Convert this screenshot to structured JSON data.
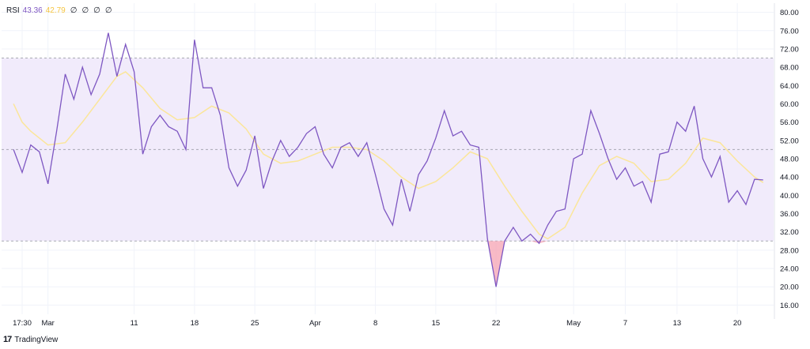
{
  "legend": {
    "name": "RSI",
    "rsi_value": "43.36",
    "ma_value": "42.79",
    "nan_values": [
      "∅",
      "∅",
      "∅",
      "∅"
    ]
  },
  "brand": {
    "label": "TradingView"
  },
  "colors": {
    "rsi_line": "#7e57c2",
    "ma_line": "#fbe69a",
    "band_fill": "#f1ebfb",
    "oversold_fill": "#f5a3b3",
    "band_line": "#9598a1",
    "grid": "#f0f3fa",
    "axis_text": "#131722"
  },
  "chart_data": {
    "type": "line",
    "y_axis": {
      "range": [
        14,
        82
      ],
      "ticks": [
        16,
        20,
        24,
        28,
        32,
        36,
        40,
        44,
        48,
        52,
        56,
        60,
        64,
        68,
        72,
        76,
        80
      ],
      "tick_labels": [
        "16.00",
        "20.00",
        "24.00",
        "28.00",
        "32.00",
        "36.00",
        "40.00",
        "44.00",
        "48.00",
        "52.00",
        "56.00",
        "60.00",
        "64.00",
        "68.00",
        "72.00",
        "76.00",
        "80.00"
      ]
    },
    "x_axis": {
      "range": [
        "Feb 27",
        "May 21"
      ],
      "ticks": [
        {
          "date": "Feb 27",
          "label": "17:30"
        },
        {
          "date": "Mar 1",
          "label": "Mar"
        },
        {
          "date": "Mar 11",
          "label": "11"
        },
        {
          "date": "Mar 18",
          "label": "18"
        },
        {
          "date": "Mar 25",
          "label": "25"
        },
        {
          "date": "Apr 1",
          "label": "Apr"
        },
        {
          "date": "Apr 8",
          "label": "8"
        },
        {
          "date": "Apr 15",
          "label": "15"
        },
        {
          "date": "Apr 22",
          "label": "22"
        },
        {
          "date": "May 1",
          "label": "May"
        },
        {
          "date": "May 7",
          "label": "7"
        },
        {
          "date": "May 13",
          "label": "13"
        },
        {
          "date": "May 20",
          "label": "20"
        }
      ]
    },
    "bands": {
      "upper": 70,
      "middle": 50,
      "lower": 30
    },
    "grid": true,
    "series": [
      {
        "name": "RSI",
        "points": [
          [
            "Feb 26",
            50.0
          ],
          [
            "Feb 27",
            45.0
          ],
          [
            "Feb 28",
            51.0
          ],
          [
            "Feb 29",
            49.5
          ],
          [
            "Mar 1",
            42.5
          ],
          [
            "Mar 2",
            54.0
          ],
          [
            "Mar 3",
            66.5
          ],
          [
            "Mar 4",
            61.0
          ],
          [
            "Mar 5",
            68.0
          ],
          [
            "Mar 6",
            62.0
          ],
          [
            "Mar 7",
            66.5
          ],
          [
            "Mar 8",
            75.5
          ],
          [
            "Mar 9",
            66.0
          ],
          [
            "Mar 10",
            73.0
          ],
          [
            "Mar 11",
            67.0
          ],
          [
            "Mar 12",
            49.0
          ],
          [
            "Mar 13",
            55.0
          ],
          [
            "Mar 14",
            57.5
          ],
          [
            "Mar 15",
            55.0
          ],
          [
            "Mar 16",
            54.0
          ],
          [
            "Mar 17",
            50.0
          ],
          [
            "Mar 18",
            74.0
          ],
          [
            "Mar 19",
            63.5
          ],
          [
            "Mar 20",
            63.5
          ],
          [
            "Mar 21",
            57.5
          ],
          [
            "Mar 22",
            46.0
          ],
          [
            "Mar 23",
            42.0
          ],
          [
            "Mar 24",
            45.5
          ],
          [
            "Mar 25",
            53.0
          ],
          [
            "Mar 26",
            41.5
          ],
          [
            "Mar 27",
            47.5
          ],
          [
            "Mar 28",
            52.0
          ],
          [
            "Mar 29",
            48.5
          ],
          [
            "Mar 30",
            50.5
          ],
          [
            "Mar 31",
            53.5
          ],
          [
            "Apr 1",
            55.0
          ],
          [
            "Apr 2",
            49.0
          ],
          [
            "Apr 3",
            46.0
          ],
          [
            "Apr 4",
            50.5
          ],
          [
            "Apr 5",
            51.5
          ],
          [
            "Apr 6",
            48.5
          ],
          [
            "Apr 7",
            51.5
          ],
          [
            "Apr 8",
            44.5
          ],
          [
            "Apr 9",
            37.0
          ],
          [
            "Apr 10",
            33.5
          ],
          [
            "Apr 11",
            43.5
          ],
          [
            "Apr 12",
            36.5
          ],
          [
            "Apr 13",
            44.5
          ],
          [
            "Apr 14",
            47.5
          ],
          [
            "Apr 15",
            52.5
          ],
          [
            "Apr 16",
            58.5
          ],
          [
            "Apr 17",
            53.0
          ],
          [
            "Apr 18",
            54.0
          ],
          [
            "Apr 19",
            51.0
          ],
          [
            "Apr 20",
            50.5
          ],
          [
            "Apr 21",
            30.5
          ],
          [
            "Apr 22",
            20.0
          ],
          [
            "Apr 23",
            30.0
          ],
          [
            "Apr 24",
            33.0
          ],
          [
            "Apr 25",
            30.0
          ],
          [
            "Apr 26",
            31.5
          ],
          [
            "Apr 27",
            29.5
          ],
          [
            "Apr 28",
            33.5
          ],
          [
            "Apr 29",
            36.5
          ],
          [
            "Apr 30",
            37.0
          ],
          [
            "May 1",
            48.0
          ],
          [
            "May 2",
            49.0
          ],
          [
            "May 3",
            58.5
          ],
          [
            "May 4",
            53.5
          ],
          [
            "May 5",
            48.0
          ],
          [
            "May 6",
            43.5
          ],
          [
            "May 7",
            46.0
          ],
          [
            "May 8",
            42.0
          ],
          [
            "May 9",
            43.0
          ],
          [
            "May 10",
            38.5
          ],
          [
            "May 11",
            49.0
          ],
          [
            "May 12",
            49.5
          ],
          [
            "May 13",
            56.0
          ],
          [
            "May 14",
            54.0
          ],
          [
            "May 15",
            59.5
          ],
          [
            "May 16",
            48.0
          ],
          [
            "May 17",
            44.0
          ],
          [
            "May 18",
            48.5
          ],
          [
            "May 19",
            38.5
          ],
          [
            "May 20",
            41.0
          ],
          [
            "May 21",
            38.0
          ],
          [
            "May 22",
            43.5
          ],
          [
            "May 23",
            43.36
          ]
        ]
      },
      {
        "name": "RSI-based MA",
        "points": [
          [
            "Feb 26",
            60.0
          ],
          [
            "Feb 27",
            56.0
          ],
          [
            "Feb 28",
            54.0
          ],
          [
            "Mar 1",
            51.0
          ],
          [
            "Mar 3",
            51.5
          ],
          [
            "Mar 5",
            56.0
          ],
          [
            "Mar 7",
            61.0
          ],
          [
            "Mar 9",
            66.0
          ],
          [
            "Mar 10",
            67.0
          ],
          [
            "Mar 12",
            63.5
          ],
          [
            "Mar 14",
            59.0
          ],
          [
            "Mar 16",
            56.5
          ],
          [
            "Mar 18",
            57.0
          ],
          [
            "Mar 20",
            59.5
          ],
          [
            "Mar 22",
            58.0
          ],
          [
            "Mar 24",
            54.5
          ],
          [
            "Mar 26",
            49.0
          ],
          [
            "Mar 28",
            47.0
          ],
          [
            "Mar 30",
            47.5
          ],
          [
            "Apr 1",
            49.0
          ],
          [
            "Apr 3",
            50.5
          ],
          [
            "Apr 5",
            50.5
          ],
          [
            "Apr 7",
            50.0
          ],
          [
            "Apr 9",
            47.5
          ],
          [
            "Apr 11",
            44.0
          ],
          [
            "Apr 13",
            41.5
          ],
          [
            "Apr 15",
            43.0
          ],
          [
            "Apr 17",
            46.0
          ],
          [
            "Apr 19",
            49.5
          ],
          [
            "Apr 21",
            48.0
          ],
          [
            "Apr 23",
            42.0
          ],
          [
            "Apr 25",
            36.5
          ],
          [
            "Apr 27",
            31.5
          ],
          [
            "Apr 28",
            30.5
          ],
          [
            "Apr 30",
            33.0
          ],
          [
            "May 2",
            40.5
          ],
          [
            "May 4",
            46.5
          ],
          [
            "May 6",
            48.5
          ],
          [
            "May 8",
            47.0
          ],
          [
            "May 10",
            43.0
          ],
          [
            "May 12",
            43.5
          ],
          [
            "May 14",
            47.0
          ],
          [
            "May 16",
            52.5
          ],
          [
            "May 18",
            51.5
          ],
          [
            "May 20",
            47.5
          ],
          [
            "May 22",
            44.0
          ],
          [
            "May 23",
            42.79
          ]
        ]
      }
    ]
  }
}
